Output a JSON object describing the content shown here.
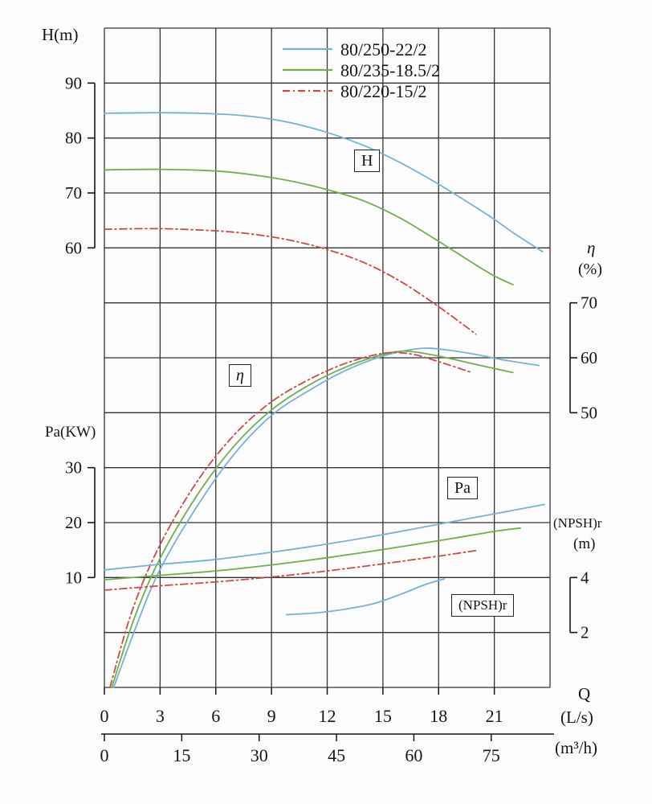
{
  "page": {
    "background": "#fcfcfc"
  },
  "axis_labels": {
    "h": "H(m)",
    "pa": "Pa(KW)",
    "eta": "η",
    "eta_unit": "(%)",
    "npsh": "(NPSH)r",
    "npsh_unit": "(m)",
    "q": "Q",
    "q_unit_ls": "(L/s)",
    "q_unit_m3h": "(m³/h)"
  },
  "box_labels": {
    "h": "H",
    "eta": "η",
    "pa": "Pa",
    "npsh": "(NPSH)r"
  },
  "chart_data": {
    "type": "line",
    "legend": [
      {
        "label": "80/250-22/2",
        "color": "#74b2d6",
        "style": "solid"
      },
      {
        "label": "80/235-18.5/2",
        "color": "#6fb04c",
        "style": "solid"
      },
      {
        "label": "80/220-15/2",
        "color": "#ce4946",
        "style": "dashdot"
      }
    ],
    "x_axis": {
      "label": "Q",
      "units": [
        "L/s",
        "m³/h"
      ],
      "range_ls": [
        0,
        24
      ],
      "grid_step_ls": 3,
      "ticks_ls": [
        0,
        3,
        6,
        9,
        12,
        15,
        18,
        21
      ],
      "ticks_m3h": [
        0,
        15,
        30,
        45,
        60,
        75
      ]
    },
    "y_axes": {
      "H": {
        "label": "H(m)",
        "ticks": [
          90,
          80,
          70,
          60
        ],
        "anchor_value": 90,
        "anchor_row": 1,
        "units_per_row": 10,
        "side": "left"
      },
      "eta": {
        "label": "η (%)",
        "ticks": [
          70,
          60,
          50
        ],
        "anchor_value": 70,
        "anchor_row": 5,
        "units_per_row": 10,
        "side": "right"
      },
      "Pa": {
        "label": "Pa (KW)",
        "ticks": [
          30,
          20,
          10
        ],
        "anchor_value": 30,
        "anchor_row": 8,
        "units_per_row": 10,
        "side": "left"
      },
      "NPSH": {
        "label": "(NPSH)r (m)",
        "ticks": [
          4,
          2
        ],
        "anchor_value": 4,
        "anchor_row": 10,
        "units_per_row": 2,
        "side": "right"
      }
    },
    "grid": true,
    "series": [
      {
        "name": "80/250-22/2 H",
        "model": "80/250-22/2",
        "axis": "H",
        "color": "#74b2d6",
        "style": "solid",
        "points": [
          [
            0,
            84.5
          ],
          [
            3,
            84.6
          ],
          [
            6,
            84.4
          ],
          [
            8,
            83.9
          ],
          [
            10,
            82.8
          ],
          [
            12,
            81.0
          ],
          [
            14,
            78.6
          ],
          [
            16,
            75.4
          ],
          [
            18,
            71.6
          ],
          [
            20,
            67.4
          ],
          [
            21,
            65.2
          ],
          [
            22,
            62.8
          ],
          [
            23.6,
            59.3
          ]
        ]
      },
      {
        "name": "80/235-18.5/2 H",
        "model": "80/235-18.5/2",
        "axis": "H",
        "color": "#6fb04c",
        "style": "solid",
        "points": [
          [
            0,
            74.2
          ],
          [
            3,
            74.3
          ],
          [
            6,
            74.0
          ],
          [
            8,
            73.3
          ],
          [
            10,
            72.2
          ],
          [
            12,
            70.6
          ],
          [
            14,
            68.5
          ],
          [
            16,
            65.3
          ],
          [
            18,
            61.2
          ],
          [
            20,
            56.9
          ],
          [
            21,
            54.9
          ],
          [
            22,
            53.3
          ]
        ]
      },
      {
        "name": "80/220-15/2 H",
        "model": "80/220-15/2",
        "axis": "H",
        "color": "#ce4946",
        "style": "dashdot",
        "points": [
          [
            0,
            63.4
          ],
          [
            3,
            63.5
          ],
          [
            6,
            63.1
          ],
          [
            8,
            62.5
          ],
          [
            10,
            61.4
          ],
          [
            12,
            59.7
          ],
          [
            14,
            57.3
          ],
          [
            16,
            53.8
          ],
          [
            18,
            49.3
          ],
          [
            19.5,
            45.6
          ],
          [
            20,
            44.3
          ]
        ]
      },
      {
        "name": "80/250-22/2 eta",
        "model": "80/250-22/2",
        "axis": "eta",
        "color": "#74b2d6",
        "style": "solid",
        "points": [
          [
            0.5,
            0
          ],
          [
            1.7,
            11
          ],
          [
            3,
            21.5
          ],
          [
            5,
            33
          ],
          [
            7,
            42.5
          ],
          [
            9,
            49.5
          ],
          [
            11,
            54
          ],
          [
            13,
            57.7
          ],
          [
            15,
            60.3
          ],
          [
            17,
            61.7
          ],
          [
            18.5,
            61.4
          ],
          [
            20,
            60.6
          ],
          [
            21.5,
            59.6
          ],
          [
            23.4,
            58.6
          ]
        ]
      },
      {
        "name": "80/235-18.5/2 eta",
        "model": "80/235-18.5/2",
        "axis": "eta",
        "color": "#6fb04c",
        "style": "solid",
        "points": [
          [
            0.4,
            0
          ],
          [
            1.6,
            12.5
          ],
          [
            3,
            23.5
          ],
          [
            5,
            35
          ],
          [
            7,
            44
          ],
          [
            9,
            50.5
          ],
          [
            11,
            55
          ],
          [
            13,
            58.3
          ],
          [
            15,
            60.6
          ],
          [
            16.3,
            61.2
          ],
          [
            18,
            60.3
          ],
          [
            20,
            58.8
          ],
          [
            22,
            57.3
          ]
        ]
      },
      {
        "name": "80/220-15/2 eta",
        "model": "80/220-15/2",
        "axis": "eta",
        "color": "#ce4946",
        "style": "dashdot",
        "points": [
          [
            0.3,
            0
          ],
          [
            1.5,
            14
          ],
          [
            3,
            26
          ],
          [
            5,
            37.5
          ],
          [
            7,
            46
          ],
          [
            9,
            52
          ],
          [
            11,
            56
          ],
          [
            13,
            59
          ],
          [
            15,
            60.8
          ],
          [
            16.5,
            60.7
          ],
          [
            18,
            59.3
          ],
          [
            19.8,
            57.3
          ]
        ]
      },
      {
        "name": "80/250-22/2 Pa",
        "model": "80/250-22/2",
        "axis": "Pa",
        "color": "#74b2d6",
        "style": "solid",
        "points": [
          [
            0,
            11.4
          ],
          [
            3,
            12.4
          ],
          [
            6,
            13.3
          ],
          [
            9,
            14.6
          ],
          [
            12,
            16.1
          ],
          [
            15,
            17.8
          ],
          [
            18,
            19.7
          ],
          [
            21,
            21.6
          ],
          [
            23.7,
            23.3
          ]
        ]
      },
      {
        "name": "80/235-18.5/2 Pa",
        "model": "80/235-18.5/2",
        "axis": "Pa",
        "color": "#6fb04c",
        "style": "solid",
        "points": [
          [
            0,
            9.6
          ],
          [
            3,
            10.4
          ],
          [
            6,
            11.2
          ],
          [
            9,
            12.3
          ],
          [
            12,
            13.6
          ],
          [
            15,
            15.1
          ],
          [
            18,
            16.7
          ],
          [
            21,
            18.4
          ],
          [
            22.4,
            19.0
          ]
        ]
      },
      {
        "name": "80/220-15/2 Pa",
        "model": "80/220-15/2",
        "axis": "Pa",
        "color": "#ce4946",
        "style": "dashdot",
        "points": [
          [
            0,
            7.7
          ],
          [
            3,
            8.5
          ],
          [
            6,
            9.2
          ],
          [
            9,
            10.1
          ],
          [
            12,
            11.2
          ],
          [
            15,
            12.5
          ],
          [
            18,
            13.9
          ],
          [
            20,
            14.9
          ]
        ]
      },
      {
        "name": "80/250-22/2 NPSHr",
        "model": "80/250-22/2",
        "axis": "NPSH",
        "color": "#74b2d6",
        "style": "solid",
        "points": [
          [
            9.8,
            2.65
          ],
          [
            11.5,
            2.72
          ],
          [
            13,
            2.85
          ],
          [
            14.5,
            3.05
          ],
          [
            16,
            3.4
          ],
          [
            17.3,
            3.75
          ],
          [
            18.3,
            3.95
          ]
        ]
      }
    ]
  }
}
